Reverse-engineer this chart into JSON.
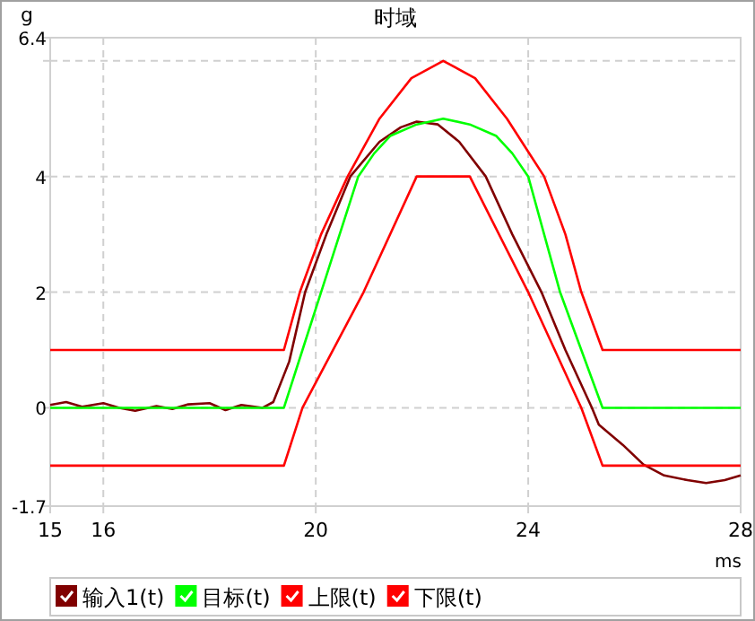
{
  "chart_data": {
    "type": "line",
    "title": "时域",
    "ylabel": "g",
    "xlabel": "ms",
    "xlim": [
      15,
      28
    ],
    "ylim": [
      -1.7,
      6.4
    ],
    "xticks": [
      15,
      16,
      20,
      24,
      28
    ],
    "yticks": [
      -1.7,
      0,
      2,
      4,
      {
        "value": 6,
        "label": null
      },
      6.4
    ],
    "grid": true,
    "legend": "bottom",
    "marker": "none",
    "line_style": "solid",
    "series": [
      {
        "name": "输入1(t)",
        "color": "#800000",
        "x": [
          15,
          15.3,
          15.6,
          16,
          16.3,
          16.6,
          17,
          17.3,
          17.6,
          18,
          18.3,
          18.6,
          19,
          19.2,
          19.5,
          19.8,
          20.2,
          20.65,
          21.2,
          21.6,
          21.9,
          22.3,
          22.7,
          23.2,
          23.7,
          24.25,
          24.7,
          25.2,
          25.33,
          25.78,
          26.17,
          26.56,
          27,
          27.35,
          27.7,
          28
        ],
        "values": [
          0.05,
          0.1,
          0.02,
          0.08,
          0.0,
          -0.05,
          0.03,
          -0.02,
          0.06,
          0.08,
          -0.04,
          0.05,
          0.0,
          0.1,
          0.8,
          2,
          3,
          4,
          4.6,
          4.85,
          4.95,
          4.9,
          4.6,
          4,
          3,
          2,
          1,
          0,
          -0.29,
          -0.64,
          -0.98,
          -1.17,
          -1.25,
          -1.3,
          -1.25,
          -1.17
        ]
      },
      {
        "name": "目标(t)",
        "color": "#00ff00",
        "x": [
          15,
          19.4,
          19.75,
          20.1,
          20.45,
          20.8,
          21.1,
          21.4,
          21.9,
          22.4,
          22.9,
          23.4,
          23.7,
          24.0,
          24.3,
          24.6,
          25.0,
          25.4,
          28
        ],
        "values": [
          0,
          0,
          1,
          2,
          3,
          4,
          4.4,
          4.7,
          4.9,
          5,
          4.9,
          4.7,
          4.4,
          4,
          3,
          2,
          1,
          0,
          0
        ]
      },
      {
        "name": "上限(t)",
        "color": "#ff0000",
        "x": [
          15,
          19.4,
          19.55,
          19.7,
          20.1,
          20.35,
          20.6,
          20.9,
          21.2,
          21.8,
          22.4,
          23.0,
          23.6,
          23.95,
          24.3,
          24.5,
          24.7,
          25.0,
          25.2,
          25.4,
          28
        ],
        "values": [
          1,
          1,
          1.5,
          2,
          3,
          3.5,
          4,
          4.5,
          5,
          5.7,
          6,
          5.7,
          5,
          4.5,
          4,
          3.5,
          3,
          2,
          1.5,
          1,
          1
        ]
      },
      {
        "name": "下限(t)",
        "color": "#ff0000",
        "x": [
          15,
          19.4,
          19.75,
          20.9,
          21.9,
          22.9,
          24.0,
          25.0,
          25.4,
          28
        ],
        "values": [
          -1,
          -1,
          0,
          2,
          4,
          4,
          2,
          0,
          -1,
          -1
        ]
      }
    ]
  }
}
